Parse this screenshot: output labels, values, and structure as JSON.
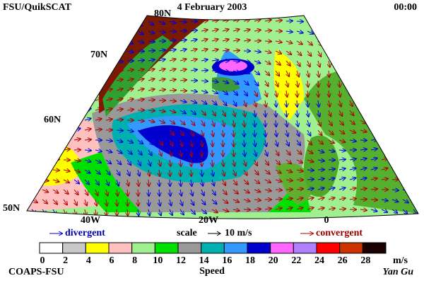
{
  "header": {
    "left": "FSU/QuikSCAT",
    "date": "4 February 2003",
    "time": "00:00"
  },
  "map": {
    "lat_labels": [
      "80N",
      "70N",
      "60N",
      "50N"
    ],
    "lon_labels": [
      "40W",
      "20W",
      "0"
    ]
  },
  "legend": {
    "divergent": "divergent",
    "scale": "scale",
    "scale_value": "10 m/s",
    "convergent": "convergent"
  },
  "colorbar": {
    "ticks": [
      0,
      2,
      4,
      6,
      8,
      10,
      12,
      14,
      16,
      18,
      20,
      22,
      24,
      26,
      28
    ],
    "unit": "m/s",
    "label": "Speed",
    "colors": [
      "#ffffff",
      "#c8c8c8",
      "#ffff00",
      "#ffc0c0",
      "#a0f090",
      "#00e000",
      "#999999",
      "#00b0b0",
      "#3399ff",
      "#0000cc",
      "#ff66ff",
      "#b080ff",
      "#ff0000",
      "#cc3300",
      "#1a0000"
    ]
  },
  "footer": {
    "left": "COAPS-FSU",
    "right": "Yan Gu"
  }
}
